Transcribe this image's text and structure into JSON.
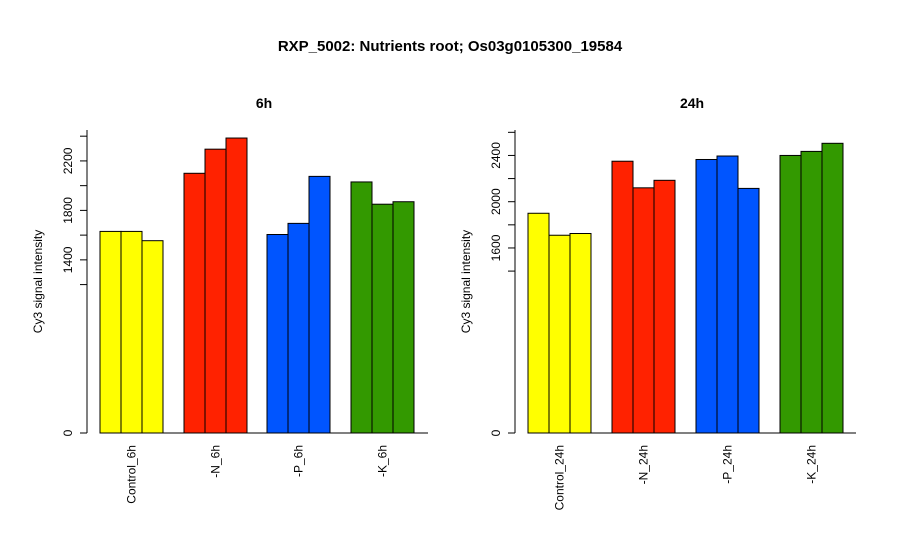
{
  "title": "RXP_5002: Nutrients root; Os03g0105300_19584",
  "chart_data": [
    {
      "type": "bar",
      "title": "6h",
      "ylabel": "Cy3 signal intensity",
      "ylim": [
        0,
        2450
      ],
      "yticks": [
        0,
        1400,
        1800,
        2200
      ],
      "groups": [
        {
          "label": "Control_6h",
          "color": "#ffff00",
          "values": [
            1630,
            1630,
            1555
          ]
        },
        {
          "label": "-N_6h",
          "color": "#ff2200",
          "values": [
            2100,
            2295,
            2385
          ]
        },
        {
          "label": "-P_6h",
          "color": "#0055ff",
          "values": [
            1605,
            1695,
            2075
          ]
        },
        {
          "label": "-K_6h",
          "color": "#339900",
          "values": [
            2030,
            1850,
            1870
          ]
        }
      ]
    },
    {
      "type": "bar",
      "title": "24h",
      "ylabel": "Cy3 signal intensity",
      "ylim": [
        0,
        2620
      ],
      "yticks": [
        0,
        1600,
        2000,
        2400
      ],
      "groups": [
        {
          "label": "Control_24h",
          "color": "#ffff00",
          "values": [
            1900,
            1710,
            1725
          ]
        },
        {
          "label": "-N_24h",
          "color": "#ff2200",
          "values": [
            2350,
            2120,
            2185
          ]
        },
        {
          "label": "-P_24h",
          "color": "#0055ff",
          "values": [
            2365,
            2395,
            2115
          ]
        },
        {
          "label": "-K_24h",
          "color": "#339900",
          "values": [
            2400,
            2435,
            2505
          ]
        }
      ]
    }
  ]
}
